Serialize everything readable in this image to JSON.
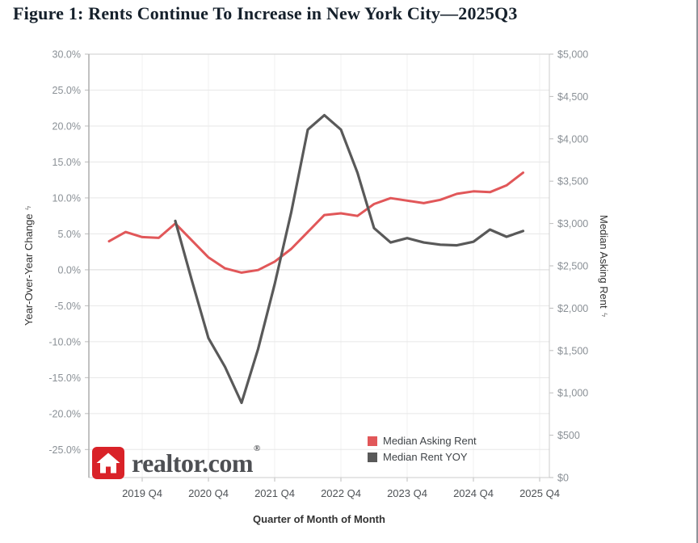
{
  "logo": {
    "brand": "realtor.com",
    "reg": "®",
    "color": "#d92228",
    "house_color": "#ffffff",
    "text_color": "#4d4f53"
  },
  "chart_data": {
    "type": "line",
    "title": "Figure 1: Rents Continue To Increase in New York City—2025Q3",
    "grid": "horizontal-and-faint-vertical",
    "legend_position": "bottom-right-inside",
    "x_axis": {
      "label": "Quarter of Month of Month",
      "start_quarter": "2019 Q2",
      "tick_labels": [
        "2019 Q4",
        "2020 Q4",
        "2021 Q4",
        "2022 Q4",
        "2023 Q4",
        "2024 Q4",
        "2025 Q4"
      ],
      "tick_indices": [
        2,
        6,
        10,
        14,
        18,
        22,
        26
      ]
    },
    "left_axis": {
      "label": "Year-Over-Year Change",
      "icon": "ϟ",
      "tick_values": [
        30,
        25,
        20,
        15,
        10,
        5,
        0,
        -5,
        -10,
        -15,
        -20,
        -25
      ],
      "tick_labels": [
        "30.0%",
        "25.0%",
        "20.0%",
        "15.0%",
        "10.0%",
        "5.0%",
        "0.0%",
        "-5.0%",
        "-10.0%",
        "-15.0%",
        "-20.0%",
        "-25.0%"
      ],
      "range": [
        30,
        -28.9
      ]
    },
    "right_axis": {
      "label": "Median Asking Rent",
      "icon": "ϟ",
      "tick_values": [
        5000,
        4500,
        4000,
        3500,
        3000,
        2500,
        2000,
        1500,
        1000,
        500,
        0
      ],
      "tick_labels": [
        "$5,000",
        "$4,500",
        "$4,000",
        "$3,500",
        "$3,000",
        "$2,500",
        "$2,000",
        "$1,500",
        "$1,000",
        "$500",
        "$0"
      ],
      "range": [
        5000,
        0
      ]
    },
    "series": [
      {
        "name": "Median Asking Rent",
        "axis": "right",
        "color": "#e15759",
        "stroke_width": 3,
        "start_index": 0,
        "start_quarter": "2019 Q2",
        "values": [
          2790,
          2900,
          2840,
          2830,
          3000,
          2800,
          2600,
          2470,
          2420,
          2450,
          2550,
          2700,
          2900,
          3100,
          3120,
          3090,
          3230,
          3300,
          3270,
          3240,
          3280,
          3350,
          3380,
          3370,
          3450,
          3600
        ]
      },
      {
        "name": "Median Rent YOY",
        "axis": "left",
        "color": "#595959",
        "stroke_width": 3.2,
        "start_index": 4,
        "start_quarter": "2020 Q2",
        "values": [
          6.8,
          -1.5,
          -9.5,
          -13.5,
          -18.5,
          -11.0,
          -2.0,
          8.0,
          19.5,
          21.5,
          19.5,
          13.5,
          5.8,
          3.8,
          4.4,
          3.8,
          3.5,
          3.4,
          3.9,
          5.6,
          4.6,
          5.4
        ]
      }
    ],
    "legend": [
      {
        "label": "Median Asking Rent",
        "color": "#e15759"
      },
      {
        "label": "Median Rent YOY",
        "color": "#595959"
      }
    ]
  }
}
